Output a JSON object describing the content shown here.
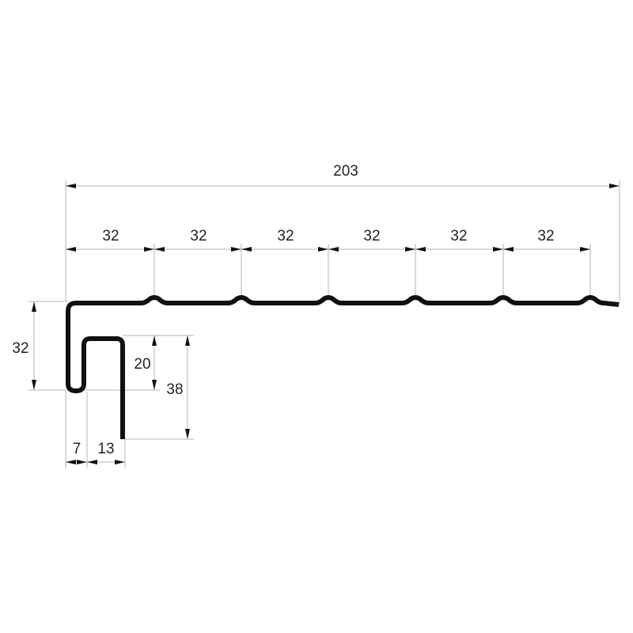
{
  "drawing": {
    "overall_width": "203",
    "rib_pitches": [
      "32",
      "32",
      "32",
      "32",
      "32",
      "32"
    ],
    "left_height": "32",
    "hook_inner_height": "20",
    "hook_leg_height": "38",
    "hook_gap": "7",
    "hook_width": "13"
  }
}
